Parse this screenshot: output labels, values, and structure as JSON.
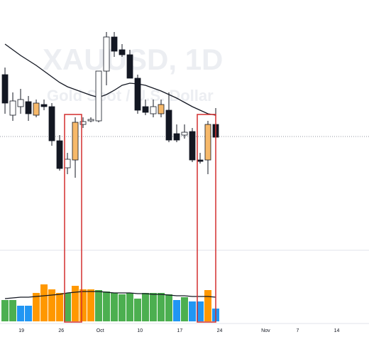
{
  "chart_data": {
    "type": "candlestick",
    "title": "XAUUSD, 1D",
    "subtitle": "Gold Spot / U.S. Dollar",
    "xlim": [
      -0.64,
      46.64
    ],
    "xticks": [
      {
        "value": 2.1,
        "label": "19"
      },
      {
        "value": 7.2,
        "label": "26"
      },
      {
        "value": 12.2,
        "label": "Oct"
      },
      {
        "value": 17.3,
        "label": "10"
      },
      {
        "value": 22.4,
        "label": "17"
      },
      {
        "value": 27.5,
        "label": "24"
      },
      {
        "value": 33.4,
        "label": "Nov"
      },
      {
        "value": 37.5,
        "label": "7"
      },
      {
        "value": 42.5,
        "label": "14"
      }
    ],
    "ylim": [
      0,
      350
    ],
    "open": [
      245,
      188,
      200,
      207,
      188,
      203,
      200,
      152,
      114,
      125,
      175,
      180,
      180,
      250,
      298,
      280,
      273,
      240,
      200,
      190,
      190,
      195,
      162,
      160,
      165,
      125,
      125,
      175
    ],
    "high": [
      255,
      220,
      225,
      215,
      210,
      210,
      205,
      160,
      135,
      185,
      185,
      185,
      250,
      305,
      305,
      288,
      280,
      245,
      210,
      210,
      210,
      220,
      175,
      175,
      170,
      135,
      180,
      198
    ],
    "low": [
      190,
      180,
      190,
      180,
      185,
      195,
      145,
      110,
      105,
      100,
      170,
      178,
      178,
      230,
      270,
      270,
      240,
      190,
      188,
      185,
      185,
      150,
      150,
      155,
      122,
      120,
      105,
      155
    ],
    "close": [
      205,
      208,
      210,
      190,
      205,
      200,
      152,
      113,
      126,
      178,
      179,
      182,
      250,
      298,
      278,
      273,
      240,
      195,
      192,
      200,
      203,
      153,
      153,
      164,
      125,
      123,
      175,
      157
    ],
    "candle_colors": [
      "#131722",
      "#ffffff",
      "#ffffff",
      "#131722",
      "#f7b96a",
      "#131722",
      "#131722",
      "#131722",
      "#ffffff",
      "#f7b96a",
      "#ffffff",
      "#ffffff",
      "#ffffff",
      "#ffffff",
      "#131722",
      "#131722",
      "#131722",
      "#131722",
      "#131722",
      "#ffffff",
      "#f7b96a",
      "#131722",
      "#131722",
      "#ffffff",
      "#131722",
      "#131722",
      "#f7b96a",
      "#131722"
    ],
    "moving_average": {
      "color": "#131722",
      "values": [
        288,
        280,
        272,
        265,
        258,
        250,
        242,
        234,
        228,
        224,
        220,
        216,
        213,
        217,
        223,
        230,
        233,
        232,
        230,
        226,
        222,
        217,
        212,
        206,
        200,
        195,
        190,
        188
      ]
    },
    "y2lim": [
      0,
      100
    ],
    "volume": {
      "values": [
        30,
        30,
        22,
        22,
        40,
        52,
        45,
        40,
        40,
        50,
        45,
        45,
        44,
        42,
        40,
        38,
        40,
        32,
        40,
        40,
        40,
        38,
        30,
        34,
        28,
        28,
        44,
        18
      ],
      "colors": [
        "#4caf50",
        "#4caf50",
        "#2196f3",
        "#2196f3",
        "#ff9800",
        "#ff9800",
        "#ff9800",
        "#ff9800",
        "#4caf50",
        "#ff9800",
        "#ff9800",
        "#ff9800",
        "#4caf50",
        "#4caf50",
        "#4caf50",
        "#4caf50",
        "#4caf50",
        "#4caf50",
        "#4caf50",
        "#4caf50",
        "#4caf50",
        "#4caf50",
        "#2196f3",
        "#4caf50",
        "#2196f3",
        "#2196f3",
        "#ff9800",
        "#2196f3"
      ],
      "ma_color": "#131722",
      "ma_values": [
        32,
        33,
        34,
        34,
        35,
        36,
        37,
        38,
        40,
        41,
        42,
        42,
        42,
        41,
        40,
        40,
        40,
        39,
        39,
        38,
        38,
        37,
        36,
        36,
        35,
        35,
        35,
        34
      ]
    }
  }
}
